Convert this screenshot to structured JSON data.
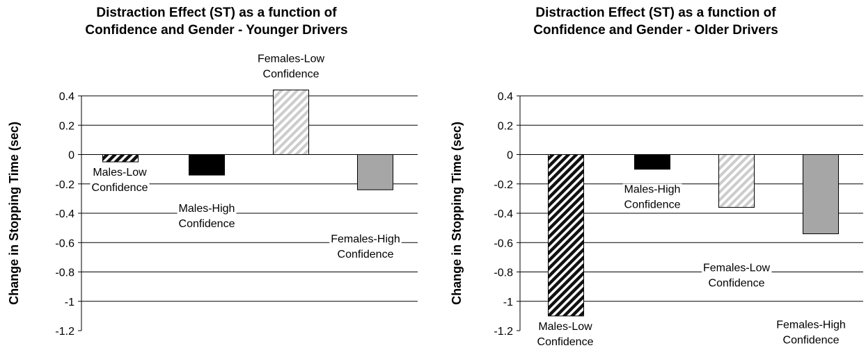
{
  "chart_data": [
    {
      "type": "bar",
      "title_lines": [
        "Distraction Effect (ST) as a function of",
        "Confidence and Gender - Younger Drivers"
      ],
      "ylabel": "Change in Stopping Time (sec)",
      "xlabel": "",
      "ylim": [
        -1.2,
        0.4
      ],
      "yticks": [
        "0.4",
        "0.2",
        "0",
        "-0.2",
        "-0.4",
        "-0.6",
        "-0.8",
        "-1",
        "-1.2"
      ],
      "grid": true,
      "bars": [
        {
          "label_lines": [
            "Males-Low",
            "Confidence"
          ],
          "value": -0.05,
          "fill": "black-hatch"
        },
        {
          "label_lines": [
            "Males-High",
            "Confidence"
          ],
          "value": -0.14,
          "fill": "black"
        },
        {
          "label_lines": [
            "Females-Low",
            "Confidence"
          ],
          "value": 0.44,
          "fill": "grey-hatch"
        },
        {
          "label_lines": [
            "Females-High",
            "Confidence"
          ],
          "value": -0.24,
          "fill": "grey"
        }
      ]
    },
    {
      "type": "bar",
      "title_lines": [
        "Distraction Effect (ST) as a function of",
        "Confidence and Gender - Older Drivers"
      ],
      "ylabel": "Change in Stopping Time (sec)",
      "xlabel": "",
      "ylim": [
        -1.2,
        0.4
      ],
      "yticks": [
        "0.4",
        "0.2",
        "0",
        "-0.2",
        "-0.4",
        "-0.6",
        "-0.8",
        "-1",
        "-1.2"
      ],
      "grid": true,
      "bars": [
        {
          "label_lines": [
            "Males-Low",
            "Confidence"
          ],
          "value": -1.1,
          "fill": "black-hatch"
        },
        {
          "label_lines": [
            "Males-High",
            "Confidence"
          ],
          "value": -0.1,
          "fill": "black"
        },
        {
          "label_lines": [
            "Females-Low",
            "Confidence"
          ],
          "value": -0.36,
          "fill": "grey-hatch"
        },
        {
          "label_lines": [
            "Females-High",
            "Confidence"
          ],
          "value": -0.54,
          "fill": "grey"
        }
      ]
    }
  ]
}
